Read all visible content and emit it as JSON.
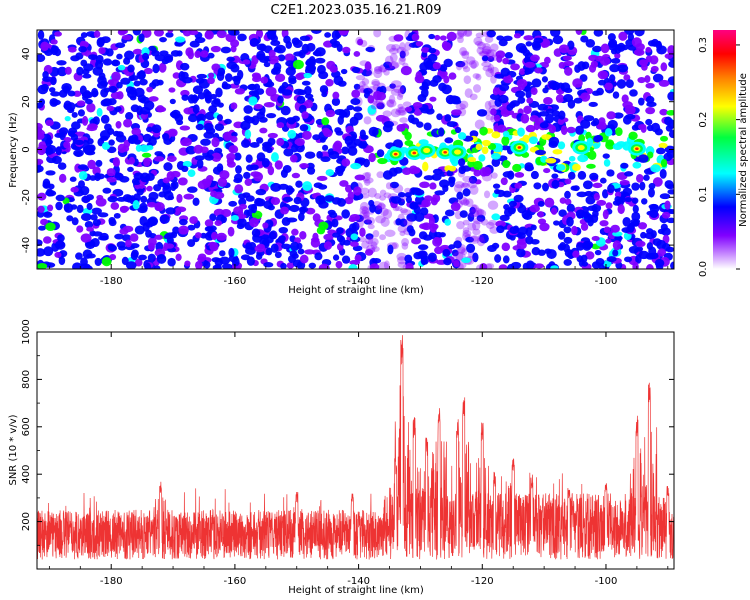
{
  "title": "C2E1.2023.035.16.21.R09",
  "chart_data": [
    {
      "type": "heatmap",
      "xlabel": "Height of straight line (km)",
      "ylabel": "Frequency (Hz)",
      "xlim": [
        -192,
        -89
      ],
      "ylim": [
        -50,
        50
      ],
      "x_ticks": [
        -180,
        -160,
        -140,
        -120,
        -100
      ],
      "y_ticks": [
        -40,
        -20,
        0,
        20,
        40
      ],
      "colorbar": {
        "label": "Normalized spectral amplitude",
        "range": [
          0.0,
          0.32
        ],
        "ticks": [
          0.0,
          0.1,
          0.2,
          0.3
        ],
        "colors": [
          "#ffffff",
          "#8000ff",
          "#0000ff",
          "#00ffff",
          "#00ff00",
          "#ffff00",
          "#ff8000",
          "#ff0000",
          "#ff0080"
        ]
      },
      "signal_band": {
        "x_range": [
          -137,
          -90
        ],
        "center_frequency": 0,
        "peak_heights": [
          -134,
          -131,
          -129,
          -126,
          -124,
          -114,
          -104,
          -95
        ]
      },
      "low_density_regions": [
        [
          -140,
          -132
        ],
        [
          -124,
          -118
        ]
      ]
    },
    {
      "type": "line",
      "xlabel": "Height of straight line (km)",
      "ylabel": "SNR (10 * v/v)",
      "xlim": [
        -192,
        -89
      ],
      "ylim": [
        0,
        1000
      ],
      "x_ticks": [
        -180,
        -160,
        -140,
        -120,
        -100
      ],
      "y_ticks": [
        200,
        400,
        600,
        800,
        1000
      ],
      "series_color": "#ee3333",
      "baseline_band": [
        40,
        250
      ],
      "peaks": [
        {
          "x": -172,
          "y": 380
        },
        {
          "x": -150,
          "y": 330
        },
        {
          "x": -141,
          "y": 320
        },
        {
          "x": -134,
          "y": 470
        },
        {
          "x": -133,
          "y": 1000
        },
        {
          "x": -131,
          "y": 650
        },
        {
          "x": -129,
          "y": 560
        },
        {
          "x": -127,
          "y": 680
        },
        {
          "x": -124,
          "y": 640
        },
        {
          "x": -123,
          "y": 740
        },
        {
          "x": -120,
          "y": 620
        },
        {
          "x": -118,
          "y": 410
        },
        {
          "x": -115,
          "y": 470
        },
        {
          "x": -112,
          "y": 400
        },
        {
          "x": -106,
          "y": 350
        },
        {
          "x": -100,
          "y": 380
        },
        {
          "x": -95,
          "y": 650
        },
        {
          "x": -93,
          "y": 800
        },
        {
          "x": -90,
          "y": 360
        }
      ]
    }
  ]
}
